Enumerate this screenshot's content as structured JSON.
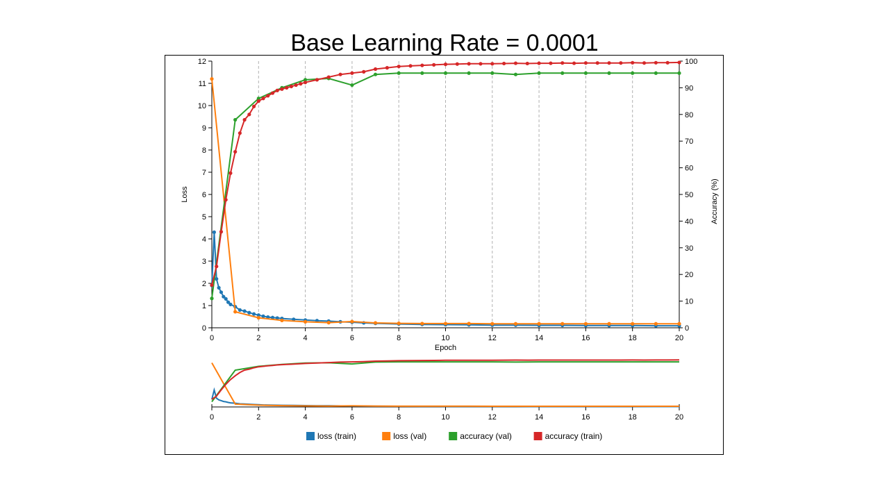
{
  "slide": {
    "title": "Base Learning Rate = 0.0001"
  },
  "chart_data": {
    "type": "line",
    "title": "Base Learning Rate = 0.0001",
    "xlabel": "Epoch",
    "ylabel_left": "Loss",
    "ylabel_right": "Accuracy (%)",
    "xlim": [
      0,
      20
    ],
    "ylim_left": [
      0,
      12
    ],
    "ylim_right": [
      0,
      100
    ],
    "x_ticks": [
      "0",
      "2",
      "4",
      "6",
      "8",
      "10",
      "12",
      "14",
      "16",
      "18",
      "20"
    ],
    "y_left_ticks": [
      "0",
      "1",
      "2",
      "3",
      "4",
      "5",
      "6",
      "7",
      "8",
      "9",
      "10",
      "11",
      "12"
    ],
    "y_right_ticks": [
      "0",
      "10",
      "20",
      "30",
      "40",
      "50",
      "60",
      "70",
      "80",
      "90",
      "100"
    ],
    "grid": "vertical dashed at every 2 epochs",
    "legend_position": "bottom",
    "overview_x_ticks": [
      "0",
      "2",
      "4",
      "6",
      "8",
      "10",
      "12",
      "14",
      "16",
      "18",
      "20"
    ],
    "series": [
      {
        "name": "loss (train)",
        "axis": "left",
        "color": "#1f77b4",
        "x": [
          0,
          0.1,
          0.2,
          0.3,
          0.4,
          0.5,
          0.6,
          0.7,
          0.8,
          1,
          1.2,
          1.4,
          1.6,
          1.8,
          2,
          2.2,
          2.4,
          2.6,
          2.8,
          3,
          3.5,
          4,
          4.5,
          5,
          5.5,
          6,
          6.5,
          7,
          8,
          9,
          10,
          11,
          12,
          13,
          14,
          15,
          16,
          17,
          18,
          19,
          20
        ],
        "values": [
          1.9,
          4.3,
          2.2,
          1.8,
          1.6,
          1.4,
          1.3,
          1.15,
          1.05,
          0.95,
          0.8,
          0.75,
          0.68,
          0.62,
          0.57,
          0.52,
          0.48,
          0.46,
          0.44,
          0.42,
          0.38,
          0.35,
          0.32,
          0.3,
          0.27,
          0.25,
          0.22,
          0.2,
          0.17,
          0.15,
          0.14,
          0.13,
          0.12,
          0.12,
          0.11,
          0.11,
          0.1,
          0.1,
          0.1,
          0.09,
          0.09
        ]
      },
      {
        "name": "loss (val)",
        "axis": "left",
        "color": "#ff7f0e",
        "x": [
          0,
          1,
          2,
          3,
          4,
          5,
          6,
          7,
          8,
          9,
          10,
          11,
          12,
          13,
          14,
          15,
          16,
          17,
          18,
          19,
          20
        ],
        "values": [
          11.2,
          0.72,
          0.45,
          0.33,
          0.27,
          0.23,
          0.28,
          0.22,
          0.2,
          0.19,
          0.19,
          0.19,
          0.18,
          0.18,
          0.18,
          0.18,
          0.18,
          0.18,
          0.18,
          0.18,
          0.18
        ]
      },
      {
        "name": "accuracy (val)",
        "axis": "right",
        "color": "#2ca02c",
        "x": [
          0,
          1,
          2,
          3,
          4,
          5,
          6,
          7,
          8,
          9,
          10,
          11,
          12,
          13,
          14,
          15,
          16,
          17,
          18,
          19,
          20
        ],
        "values": [
          11,
          78,
          86,
          90,
          93,
          93.5,
          91,
          95,
          95.5,
          95.5,
          95.5,
          95.5,
          95.5,
          95,
          95.5,
          95.5,
          95.5,
          95.5,
          95.5,
          95.5,
          95.5
        ]
      },
      {
        "name": "accuracy (train)",
        "axis": "right",
        "color": "#d62728",
        "x": [
          0,
          0.2,
          0.4,
          0.6,
          0.8,
          1,
          1.2,
          1.4,
          1.6,
          1.8,
          2,
          2.2,
          2.4,
          2.6,
          2.8,
          3,
          3.2,
          3.4,
          3.6,
          3.8,
          4,
          4.5,
          5,
          5.5,
          6,
          6.5,
          7,
          7.5,
          8,
          8.5,
          9,
          9.5,
          10,
          10.5,
          11,
          11.5,
          12,
          12.5,
          13,
          13.5,
          14,
          14.5,
          15,
          15.5,
          16,
          16.5,
          17,
          17.5,
          18,
          18.5,
          19,
          19.5,
          20
        ],
        "values": [
          16,
          23,
          36,
          48,
          58,
          66,
          73,
          78,
          80,
          83,
          85,
          86,
          87,
          88,
          89,
          89.5,
          90,
          90.5,
          91,
          91.5,
          92,
          93,
          94,
          95,
          95.5,
          96,
          97,
          97.5,
          98,
          98.2,
          98.4,
          98.6,
          98.8,
          98.9,
          99,
          99,
          99,
          99.1,
          99.2,
          99.1,
          99.2,
          99.2,
          99.3,
          99.2,
          99.3,
          99.3,
          99.3,
          99.3,
          99.4,
          99.3,
          99.4,
          99.4,
          99.5
        ]
      }
    ]
  }
}
